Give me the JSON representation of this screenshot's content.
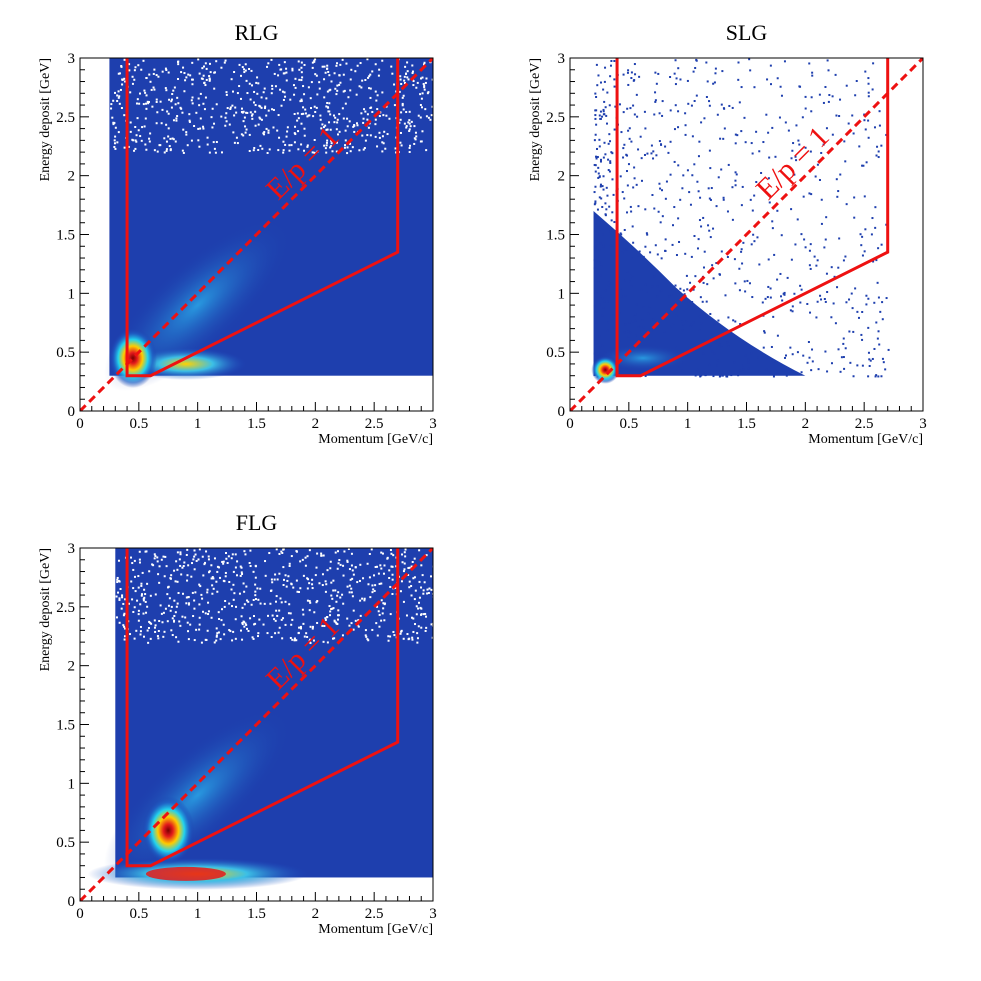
{
  "chart_data": [
    {
      "type": "heatmap",
      "title": "RLG",
      "xlabel": "Momentum [GeV/c]",
      "ylabel": "Energy deposit [GeV]",
      "xlim": [
        0,
        3
      ],
      "ylim": [
        0,
        3
      ],
      "x_ticks": [
        "0",
        "0.5",
        "1",
        "1.5",
        "2",
        "2.5",
        "3"
      ],
      "y_ticks": [
        "0",
        "0.5",
        "1",
        "1.5",
        "2",
        "2.5",
        "3"
      ],
      "energy_threshold": 0.3,
      "cut_polygon": [
        [
          0.4,
          3.0
        ],
        [
          0.4,
          0.3
        ],
        [
          0.6,
          0.3
        ],
        [
          2.7,
          1.35
        ],
        [
          2.7,
          3.0
        ]
      ],
      "diagonal_label": "E/p = 1",
      "hotspot": {
        "momentum": 0.45,
        "energy": 0.45
      },
      "annotation_color": "#ee1111"
    },
    {
      "type": "heatmap",
      "title": "SLG",
      "xlabel": "Momentum [GeV/c]",
      "ylabel": "Energy deposit [GeV]",
      "xlim": [
        0,
        3
      ],
      "ylim": [
        0,
        3
      ],
      "x_ticks": [
        "0",
        "0.5",
        "1",
        "1.5",
        "2",
        "2.5",
        "3"
      ],
      "y_ticks": [
        "0",
        "0.5",
        "1",
        "1.5",
        "2",
        "2.5",
        "3"
      ],
      "energy_threshold": 0.3,
      "cut_polygon": [
        [
          0.4,
          3.0
        ],
        [
          0.4,
          0.3
        ],
        [
          0.6,
          0.3
        ],
        [
          2.7,
          1.35
        ],
        [
          2.7,
          3.0
        ]
      ],
      "diagonal_label": "E/p = 1",
      "hotspot": {
        "momentum": 0.3,
        "energy": 0.35
      },
      "annotation_color": "#ee1111"
    },
    {
      "type": "heatmap",
      "title": "FLG",
      "xlabel": "Momentum [GeV/c]",
      "ylabel": "Energy deposit [GeV]",
      "xlim": [
        0,
        3
      ],
      "ylim": [
        0,
        3
      ],
      "x_ticks": [
        "0",
        "0.5",
        "1",
        "1.5",
        "2",
        "2.5",
        "3"
      ],
      "y_ticks": [
        "0",
        "0.5",
        "1",
        "1.5",
        "2",
        "2.5",
        "3"
      ],
      "energy_threshold": 0.2,
      "cut_polygon": [
        [
          0.4,
          3.0
        ],
        [
          0.4,
          0.3
        ],
        [
          0.6,
          0.3
        ],
        [
          2.7,
          1.35
        ],
        [
          2.7,
          3.0
        ]
      ],
      "diagonal_label": "E/p = 1",
      "hotspot": {
        "momentum": 0.9,
        "energy": 0.23
      },
      "annotation_color": "#ee1111"
    }
  ]
}
